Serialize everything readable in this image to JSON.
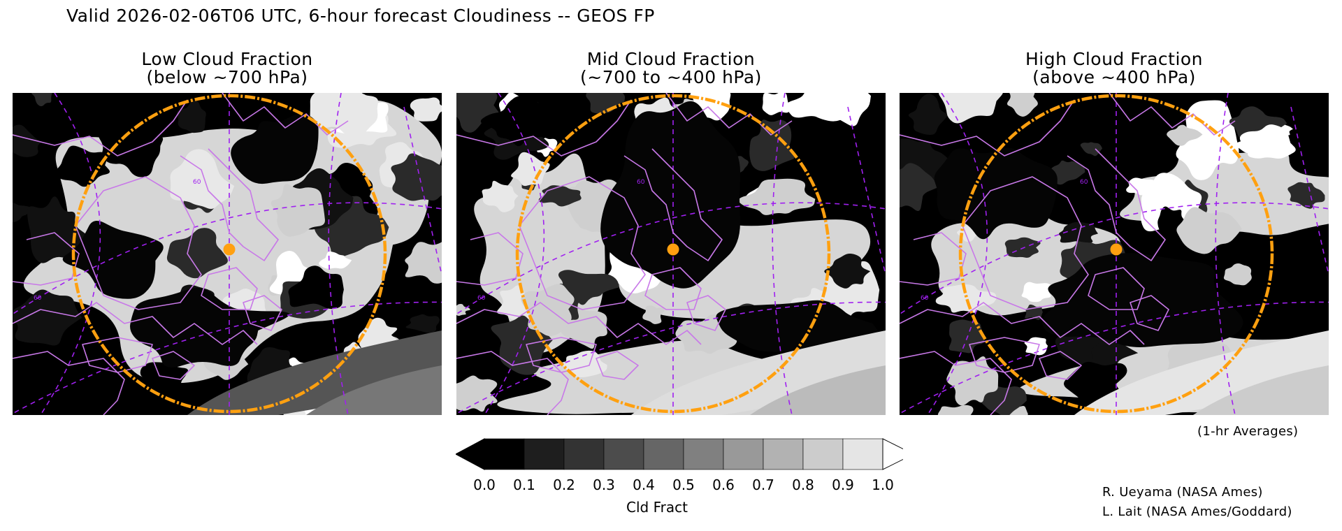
{
  "header": {
    "title": "Valid 2026-02-06T06 UTC, 6-hour forecast Cloudiness -- GEOS FP"
  },
  "panels": [
    {
      "title_line1": "Low Cloud Fraction",
      "title_line2": "(below ~700 hPa)",
      "lat_label": "60",
      "lat_label_2": "60"
    },
    {
      "title_line1": "Mid Cloud Fraction",
      "title_line2": "(~700 to ~400 hPa)",
      "lat_label": "60",
      "lat_label_2": "60"
    },
    {
      "title_line1": "High Cloud Fraction",
      "title_line2": "(above ~400 hPa)",
      "lat_label": "60",
      "lat_label_2": "60"
    }
  ],
  "colorbar": {
    "label": "Cld Fract",
    "ticks": [
      "0.0",
      "0.1",
      "0.2",
      "0.3",
      "0.4",
      "0.5",
      "0.6",
      "0.7",
      "0.8",
      "0.9",
      "1.0"
    ],
    "colors": [
      "#000000",
      "#1e1e1e",
      "#333333",
      "#4c4c4c",
      "#666666",
      "#808080",
      "#999999",
      "#b2b2b2",
      "#cccccc",
      "#e5e5e5"
    ],
    "under_color": "#000000",
    "over_color": "#ffffff"
  },
  "notes": {
    "averages": "(1-hr Averages)",
    "credit1": "R. Ueyama (NASA Ames)",
    "credit2": "L. Lait (NASA Ames/Goddard)"
  },
  "style_colors": {
    "ring": "#ffa010",
    "coast": "#c878e8",
    "grid": "#a020f0",
    "dot": "#ffa010"
  }
}
